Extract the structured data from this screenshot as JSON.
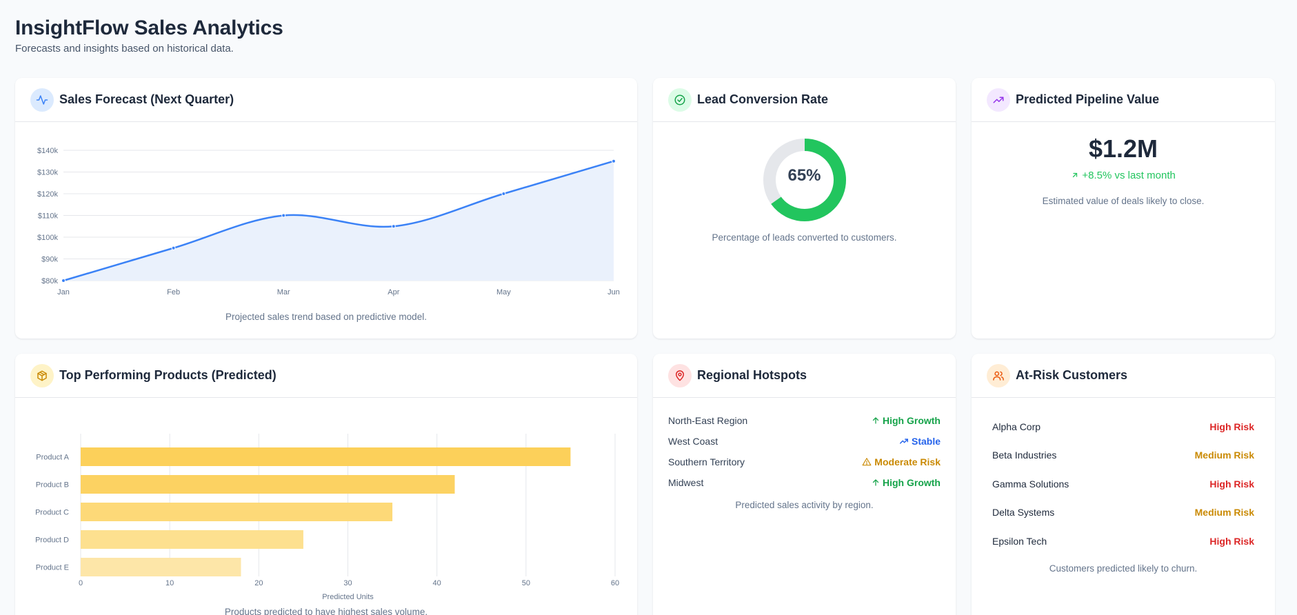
{
  "header": {
    "title": "InsightFlow Sales Analytics",
    "subtitle": "Forecasts and insights based on historical data."
  },
  "sales_forecast": {
    "title": "Sales Forecast (Next Quarter)",
    "icon": "activity-icon",
    "caption": "Projected sales trend based on predictive model."
  },
  "lead_conversion": {
    "title": "Lead Conversion Rate",
    "icon": "check-circle-icon",
    "value_label": "65%",
    "value": 65,
    "caption": "Percentage of leads converted to customers."
  },
  "pipeline": {
    "title": "Predicted Pipeline Value",
    "icon": "trending-up-icon",
    "value": "$1.2M",
    "delta": "+8.5% vs last month",
    "caption": "Estimated value of deals likely to close."
  },
  "top_products": {
    "title": "Top Performing Products (Predicted)",
    "icon": "package-icon",
    "caption": "Products predicted to have highest sales volume."
  },
  "regions": {
    "title": "Regional Hotspots",
    "icon": "map-pin-icon",
    "caption": "Predicted sales activity by region.",
    "items": [
      {
        "name": "North-East Region",
        "status": "High Growth",
        "icon": "arrow-up-icon",
        "color": "#16a34a"
      },
      {
        "name": "West Coast",
        "status": "Stable",
        "icon": "trending-up-icon",
        "color": "#2563eb"
      },
      {
        "name": "Southern Territory",
        "status": "Moderate Risk",
        "icon": "warning-icon",
        "color": "#ca8a04"
      },
      {
        "name": "Midwest",
        "status": "High Growth",
        "icon": "arrow-up-icon",
        "color": "#16a34a"
      }
    ]
  },
  "at_risk": {
    "title": "At-Risk Customers",
    "icon": "users-icon",
    "caption": "Customers predicted likely to churn.",
    "items": [
      {
        "name": "Alpha Corp",
        "risk": "High Risk",
        "color": "#dc2626"
      },
      {
        "name": "Beta Industries",
        "risk": "Medium Risk",
        "color": "#ca8a04"
      },
      {
        "name": "Gamma Solutions",
        "risk": "High Risk",
        "color": "#dc2626"
      },
      {
        "name": "Delta Systems",
        "risk": "Medium Risk",
        "color": "#ca8a04"
      },
      {
        "name": "Epsilon Tech",
        "risk": "High Risk",
        "color": "#dc2626"
      }
    ]
  },
  "chart_data": [
    {
      "type": "line",
      "x": [
        "Jan",
        "Feb",
        "Mar",
        "Apr",
        "May",
        "Jun"
      ],
      "values": [
        80000,
        95000,
        110000,
        105000,
        120000,
        135000
      ],
      "yticks": [
        "$80k",
        "$90k",
        "$100k",
        "$110k",
        "$120k",
        "$130k",
        "$140k"
      ],
      "ylim": [
        80000,
        140000
      ],
      "grid": true,
      "color": "#3b82f6",
      "fill": "#eaf1fc"
    },
    {
      "type": "bar",
      "orientation": "horizontal",
      "categories": [
        "Product A",
        "Product B",
        "Product C",
        "Product D",
        "Product E"
      ],
      "values": [
        55,
        42,
        35,
        25,
        18
      ],
      "colors": [
        "#fcd05a",
        "#fcd262",
        "#fdd978",
        "#fde08f",
        "#fde6a8"
      ],
      "xlabel": "Predicted Units",
      "xticks": [
        "0",
        "10",
        "20",
        "30",
        "40",
        "50",
        "60"
      ],
      "xlim": [
        0,
        60
      ],
      "grid": true
    }
  ]
}
